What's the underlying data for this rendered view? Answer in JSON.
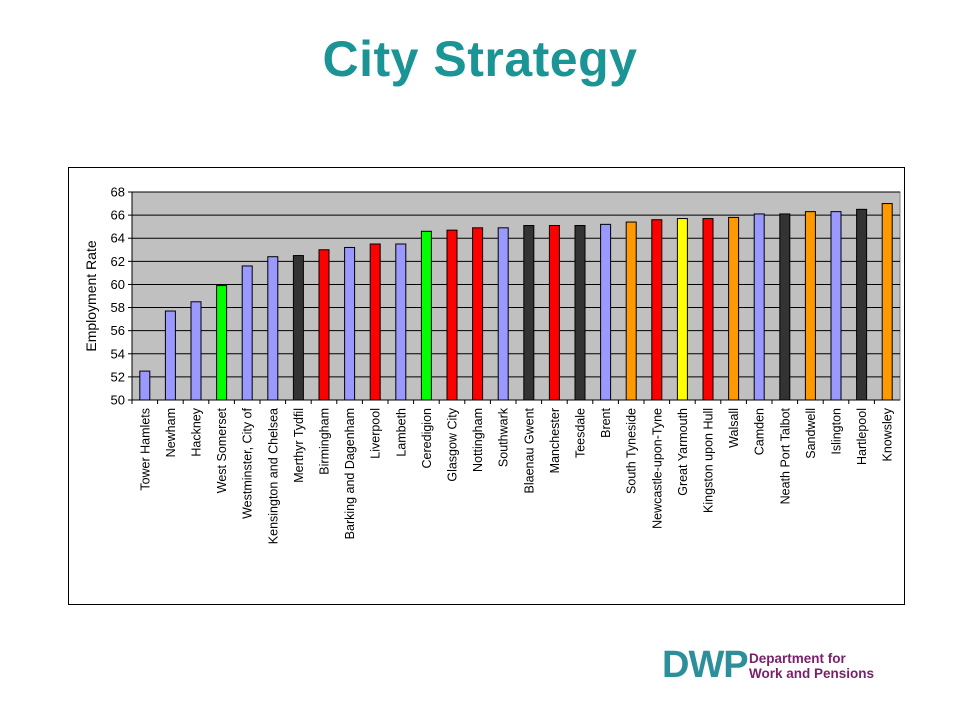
{
  "page": {
    "title": "City Strategy"
  },
  "logo": {
    "abbreviation": "DWP",
    "line1": "Department for",
    "line2": "Work and Pensions",
    "colors": {
      "mark": "#2d8f9a",
      "text": "#7a1f6b"
    }
  },
  "chart_data": {
    "type": "bar",
    "title": "",
    "xlabel": "",
    "ylabel": "Employment Rate",
    "ylim": [
      50,
      68
    ],
    "yticks": [
      50,
      52,
      54,
      56,
      58,
      60,
      62,
      64,
      66,
      68
    ],
    "grid": true,
    "legend": "none",
    "plot_background": "#c0c0c0",
    "bars": [
      {
        "category": "Tower Hamlets",
        "value": 52.5,
        "color": "#9999ff"
      },
      {
        "category": "Newham",
        "value": 57.7,
        "color": "#9999ff"
      },
      {
        "category": "Hackney",
        "value": 58.5,
        "color": "#9999ff"
      },
      {
        "category": "West Somerset",
        "value": 59.9,
        "color": "#00ff00"
      },
      {
        "category": "Westminster, City of",
        "value": 61.6,
        "color": "#9999ff"
      },
      {
        "category": "Kensington and Chelsea",
        "value": 62.4,
        "color": "#9999ff"
      },
      {
        "category": "Merthyr Tydfil",
        "value": 62.5,
        "color": "#333333"
      },
      {
        "category": "Birmingham",
        "value": 63.0,
        "color": "#ff0000"
      },
      {
        "category": "Barking and Dagenham",
        "value": 63.2,
        "color": "#9999ff"
      },
      {
        "category": "Liverpool",
        "value": 63.5,
        "color": "#ff0000"
      },
      {
        "category": "Lambeth",
        "value": 63.5,
        "color": "#9999ff"
      },
      {
        "category": "Ceredigion",
        "value": 64.6,
        "color": "#00ff00"
      },
      {
        "category": "Glasgow City",
        "value": 64.7,
        "color": "#ff0000"
      },
      {
        "category": "Nottingham",
        "value": 64.9,
        "color": "#ff0000"
      },
      {
        "category": "Southwark",
        "value": 64.9,
        "color": "#9999ff"
      },
      {
        "category": "Blaenau Gwent",
        "value": 65.1,
        "color": "#333333"
      },
      {
        "category": "Manchester",
        "value": 65.1,
        "color": "#ff0000"
      },
      {
        "category": "Teesdale",
        "value": 65.1,
        "color": "#333333"
      },
      {
        "category": "Brent",
        "value": 65.2,
        "color": "#9999ff"
      },
      {
        "category": "South Tyneside",
        "value": 65.4,
        "color": "#ff9900"
      },
      {
        "category": "Newcastle-upon-Tyne",
        "value": 65.6,
        "color": "#ff0000"
      },
      {
        "category": "Great Yarmouth",
        "value": 65.7,
        "color": "#ffff00"
      },
      {
        "category": "Kingston upon Hull",
        "value": 65.7,
        "color": "#ff0000"
      },
      {
        "category": "Walsall",
        "value": 65.8,
        "color": "#ff9900"
      },
      {
        "category": "Camden",
        "value": 66.1,
        "color": "#9999ff"
      },
      {
        "category": "Neath Port Talbot",
        "value": 66.1,
        "color": "#333333"
      },
      {
        "category": "Sandwell",
        "value": 66.3,
        "color": "#ff9900"
      },
      {
        "category": "Islington",
        "value": 66.3,
        "color": "#9999ff"
      },
      {
        "category": "Hartlepool",
        "value": 66.5,
        "color": "#333333"
      },
      {
        "category": "Knowsley",
        "value": 67.0,
        "color": "#ff9900"
      }
    ]
  }
}
